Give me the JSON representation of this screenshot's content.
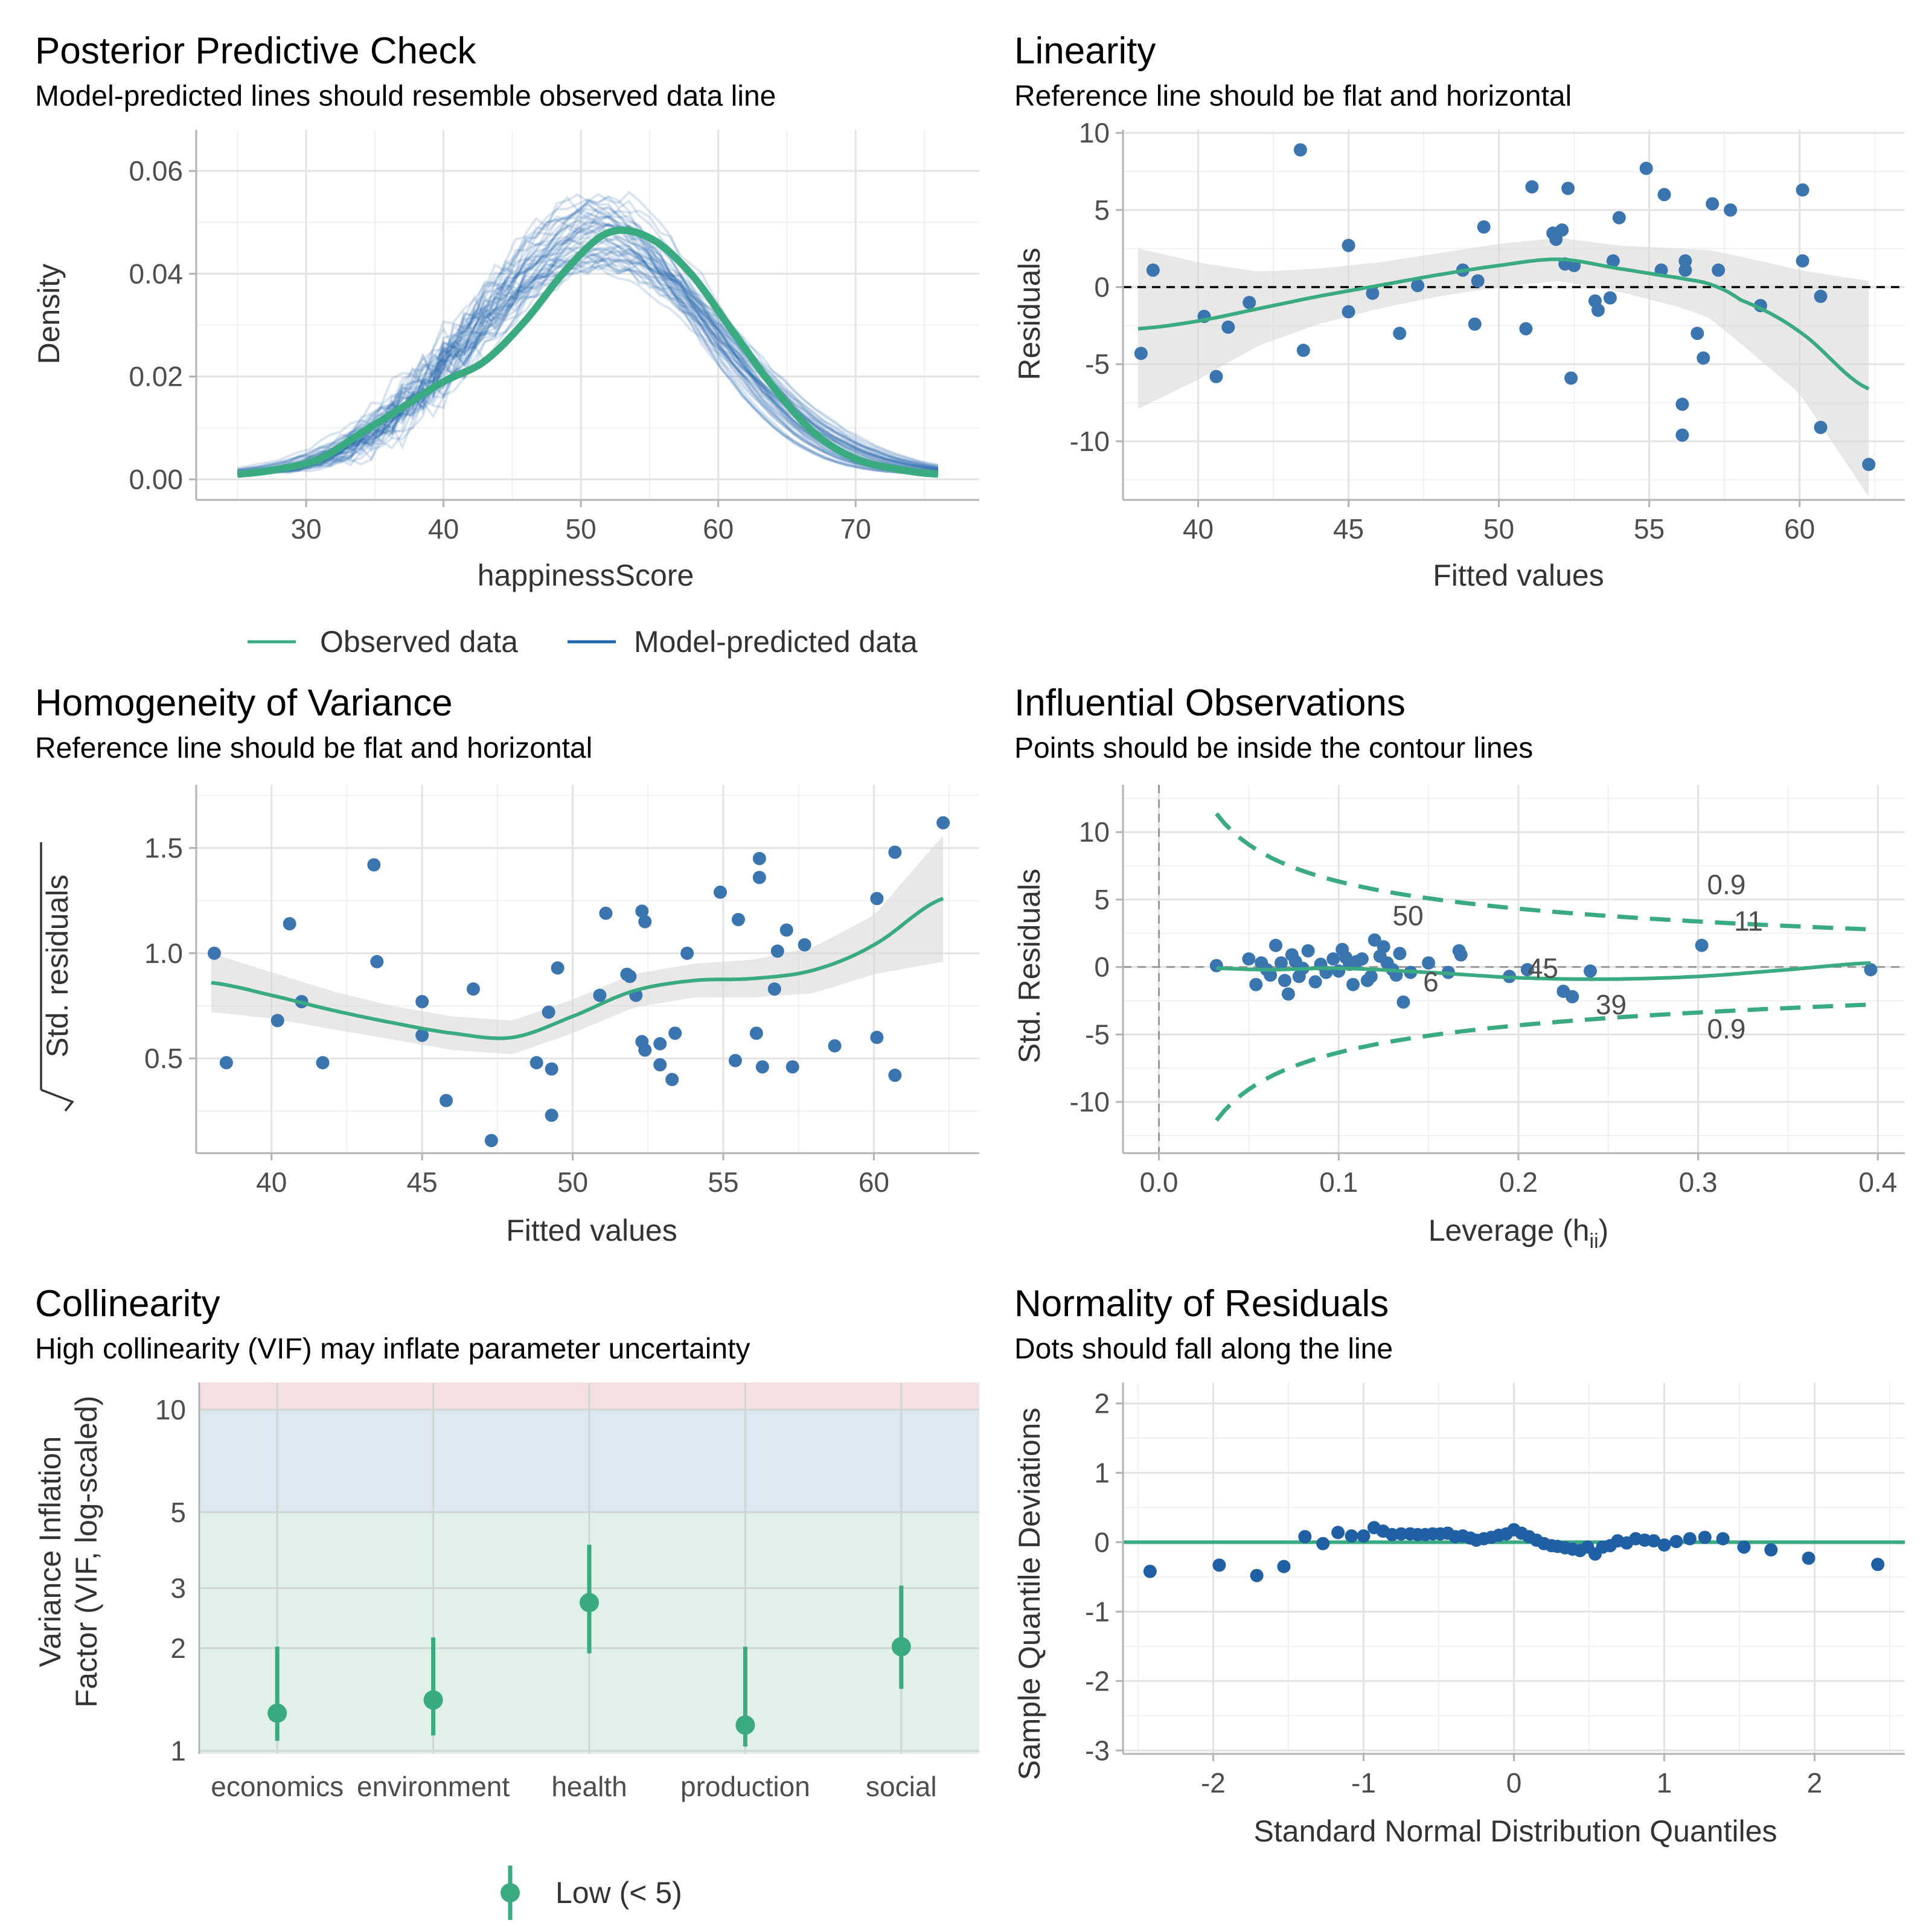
{
  "colors": {
    "observed": "#3aaa80",
    "predicted": "#2166ac",
    "points": "#3a75b0",
    "accent": "#3aaa80",
    "ribbon": "#d9d9d9",
    "zone_low": "#e1f1ea",
    "zone_mod": "#dce7f1",
    "zone_high": "#f6dfe2"
  },
  "chart_data": [
    {
      "id": "ppc",
      "type": "line",
      "title": "Posterior Predictive Check",
      "subtitle": "Model-predicted lines should resemble observed data line",
      "xlabel": "happinessScore",
      "ylabel": "Density",
      "xlim": [
        22,
        79
      ],
      "ylim": [
        -0.004,
        0.068
      ],
      "xticks": [
        30,
        40,
        50,
        60,
        70
      ],
      "yticks": [
        0.0,
        0.02,
        0.04,
        0.06
      ],
      "ytick_labels": [
        "0.00",
        "0.02",
        "0.04",
        "0.06"
      ],
      "legend": [
        "Observed data",
        "Model-predicted data"
      ],
      "series": [
        {
          "name": "Observed data",
          "x": [
            25,
            28,
            31,
            34,
            37,
            40,
            43,
            46,
            49,
            52,
            55,
            58,
            61,
            64,
            67,
            70,
            73,
            76
          ],
          "y": [
            0.001,
            0.002,
            0.004,
            0.009,
            0.014,
            0.019,
            0.023,
            0.031,
            0.041,
            0.048,
            0.047,
            0.04,
            0.029,
            0.018,
            0.009,
            0.004,
            0.002,
            0.001
          ]
        },
        {
          "name": "Model-predicted data",
          "note_draws": 50,
          "center_x": 51.5,
          "sd": 8.4,
          "peak": 0.048
        }
      ]
    },
    {
      "id": "linearity",
      "type": "scatter",
      "title": "Linearity",
      "subtitle": "Reference line should be flat and horizontal",
      "xlabel": "Fitted values",
      "ylabel": "Residuals",
      "xlim": [
        37.5,
        63.5
      ],
      "ylim": [
        -13.8,
        10.2
      ],
      "xticks": [
        40,
        45,
        50,
        55,
        60
      ],
      "yticks": [
        -10,
        -5,
        0,
        5,
        10
      ],
      "points": [
        [
          38.1,
          -4.3
        ],
        [
          38.5,
          1.1
        ],
        [
          40.2,
          -1.9
        ],
        [
          40.6,
          -5.8
        ],
        [
          41,
          -2.6
        ],
        [
          41.7,
          -1
        ],
        [
          43.4,
          8.9
        ],
        [
          43.5,
          -4.1
        ],
        [
          45,
          2.7
        ],
        [
          45,
          -1.6
        ],
        [
          45.8,
          -0.4
        ],
        [
          46.7,
          -3
        ],
        [
          47.3,
          0.1
        ],
        [
          48.8,
          1.1
        ],
        [
          49.2,
          -2.4
        ],
        [
          49.3,
          0.4
        ],
        [
          49.5,
          3.9
        ],
        [
          50.9,
          -2.7
        ],
        [
          51.1,
          6.5
        ],
        [
          51.8,
          3.5
        ],
        [
          51.9,
          3.1
        ],
        [
          52.1,
          3.7
        ],
        [
          52.2,
          1.5
        ],
        [
          52.3,
          6.4
        ],
        [
          52.4,
          -5.9
        ],
        [
          52.5,
          1.4
        ],
        [
          53.2,
          -0.9
        ],
        [
          53.3,
          -1.5
        ],
        [
          53.7,
          -0.7
        ],
        [
          53.8,
          1.7
        ],
        [
          54,
          4.5
        ],
        [
          54.9,
          7.7
        ],
        [
          55.4,
          1.1
        ],
        [
          55.5,
          6
        ],
        [
          56.1,
          -7.6
        ],
        [
          56.1,
          -9.6
        ],
        [
          56.2,
          1.7
        ],
        [
          56.2,
          1.1
        ],
        [
          56.6,
          -3
        ],
        [
          56.8,
          -4.6
        ],
        [
          57.1,
          5.4
        ],
        [
          57.3,
          1.1
        ],
        [
          57.7,
          5
        ],
        [
          58.7,
          -1.2
        ],
        [
          60.1,
          6.3
        ],
        [
          60.1,
          1.7
        ],
        [
          60.7,
          -9.1
        ],
        [
          60.7,
          -0.6
        ],
        [
          62.3,
          -11.5
        ]
      ],
      "smooth": {
        "x": [
          38,
          40,
          42,
          44,
          46,
          48,
          50,
          52,
          54,
          56,
          57,
          58,
          60,
          62.3
        ],
        "y": [
          -2.7,
          -2.2,
          -1.4,
          -0.6,
          0.1,
          0.8,
          1.4,
          1.8,
          1.2,
          0.6,
          0.2,
          -0.8,
          -2.9,
          -6.6
        ],
        "band": [
          5.2,
          3.8,
          2.4,
          1.8,
          1.5,
          1.4,
          1.4,
          1.4,
          1.5,
          1.9,
          2.2,
          2.8,
          4.0,
          7.0
        ]
      }
    },
    {
      "id": "homogeneity",
      "type": "scatter",
      "title": "Homogeneity of Variance",
      "subtitle": "Reference line should be flat and horizontal",
      "xlabel": "Fitted values",
      "ylabel": "Std. residuals",
      "xlim": [
        37.5,
        63.5
      ],
      "ylim": [
        0.05,
        1.8
      ],
      "xticks": [
        40,
        45,
        50,
        55,
        60
      ],
      "yticks": [
        0.5,
        1.0,
        1.5
      ],
      "ytick_labels": [
        "0.5",
        "1.0",
        "1.5"
      ],
      "points": [
        [
          38.1,
          1.0
        ],
        [
          38.5,
          0.48
        ],
        [
          40.2,
          0.68
        ],
        [
          40.6,
          1.14
        ],
        [
          41,
          0.77
        ],
        [
          41.7,
          0.48
        ],
        [
          43.4,
          1.42
        ],
        [
          43.5,
          0.96
        ],
        [
          45,
          0.77
        ],
        [
          45,
          0.61
        ],
        [
          45.8,
          0.3
        ],
        [
          46.7,
          0.83
        ],
        [
          47.3,
          0.11
        ],
        [
          48.8,
          0.48
        ],
        [
          49.2,
          0.72
        ],
        [
          49.3,
          0.45
        ],
        [
          49.3,
          0.23
        ],
        [
          49.5,
          0.93
        ],
        [
          50.9,
          0.8
        ],
        [
          51.1,
          1.19
        ],
        [
          51.8,
          0.9
        ],
        [
          51.9,
          0.89
        ],
        [
          52.1,
          0.8
        ],
        [
          52.3,
          0.58
        ],
        [
          52.3,
          1.2
        ],
        [
          52.4,
          1.15
        ],
        [
          52.4,
          0.54
        ],
        [
          52.9,
          0.57
        ],
        [
          52.9,
          0.47
        ],
        [
          53.3,
          0.4
        ],
        [
          53.4,
          0.62
        ],
        [
          53.8,
          1.0
        ],
        [
          54.9,
          1.29
        ],
        [
          55.4,
          0.49
        ],
        [
          55.5,
          1.16
        ],
        [
          56.1,
          0.62
        ],
        [
          56.2,
          1.45
        ],
        [
          56.2,
          1.36
        ],
        [
          56.3,
          0.46
        ],
        [
          56.7,
          0.83
        ],
        [
          56.8,
          1.01
        ],
        [
          57.1,
          1.11
        ],
        [
          57.3,
          0.46
        ],
        [
          57.7,
          1.04
        ],
        [
          58.7,
          0.56
        ],
        [
          60.1,
          1.26
        ],
        [
          60.1,
          0.6
        ],
        [
          60.7,
          1.48
        ],
        [
          60.7,
          0.42
        ],
        [
          62.3,
          1.62
        ]
      ],
      "smooth": {
        "x": [
          38,
          40,
          42,
          44,
          46,
          48,
          50,
          52,
          54,
          56,
          58,
          60,
          62.3
        ],
        "y": [
          0.86,
          0.8,
          0.73,
          0.67,
          0.62,
          0.6,
          0.7,
          0.82,
          0.87,
          0.88,
          0.92,
          1.04,
          1.26
        ],
        "band": [
          0.14,
          0.11,
          0.09,
          0.08,
          0.08,
          0.08,
          0.08,
          0.08,
          0.08,
          0.09,
          0.11,
          0.14,
          0.3
        ]
      }
    },
    {
      "id": "influential",
      "type": "scatter",
      "title": "Influential Observations",
      "subtitle": "Points should be inside the contour lines",
      "xlabel": "Leverage (h",
      "xlabel_sub": "ii",
      "xlabel_end": ")",
      "ylabel": "Std. Residuals",
      "xlim": [
        -0.02,
        0.415
      ],
      "ylim": [
        -13.8,
        13.5
      ],
      "xticks": [
        0.0,
        0.1,
        0.2,
        0.3,
        0.4
      ],
      "yticks": [
        -10,
        -5,
        0,
        5,
        10
      ],
      "xtick_labels": [
        "0.0",
        "0.1",
        "0.2",
        "0.3",
        "0.4"
      ],
      "contour_label": "0.9",
      "points": [
        [
          0.032,
          0.1
        ],
        [
          0.05,
          0.6
        ],
        [
          0.054,
          -1.3
        ],
        [
          0.057,
          0.3
        ],
        [
          0.06,
          -0.2
        ],
        [
          0.062,
          -0.6
        ],
        [
          0.065,
          1.6
        ],
        [
          0.068,
          0.3
        ],
        [
          0.07,
          -1.0
        ],
        [
          0.072,
          -2.0
        ],
        [
          0.074,
          0.9
        ],
        [
          0.076,
          0.4
        ],
        [
          0.078,
          -0.7
        ],
        [
          0.08,
          -0.1
        ],
        [
          0.083,
          1.2
        ],
        [
          0.087,
          -1.1
        ],
        [
          0.09,
          0.2
        ],
        [
          0.093,
          -0.4
        ],
        [
          0.097,
          0.6
        ],
        [
          0.1,
          -0.3
        ],
        [
          0.102,
          1.3
        ],
        [
          0.104,
          0.7
        ],
        [
          0.106,
          0.2
        ],
        [
          0.108,
          -1.3
        ],
        [
          0.11,
          0.4
        ],
        [
          0.113,
          0.6
        ],
        [
          0.116,
          -1.0
        ],
        [
          0.118,
          -0.7
        ],
        [
          0.12,
          2.0
        ],
        [
          0.123,
          0.8
        ],
        [
          0.125,
          1.5
        ],
        [
          0.127,
          0.3
        ],
        [
          0.13,
          -0.2
        ],
        [
          0.132,
          -0.6
        ],
        [
          0.134,
          1.0
        ],
        [
          0.136,
          -2.6
        ],
        [
          0.14,
          -0.4
        ],
        [
          0.15,
          0.3
        ],
        [
          0.161,
          -0.4
        ],
        [
          0.167,
          1.2
        ],
        [
          0.168,
          0.9
        ],
        [
          0.195,
          -0.7
        ],
        [
          0.205,
          -0.2
        ],
        [
          0.225,
          -1.8
        ],
        [
          0.23,
          -2.2
        ],
        [
          0.24,
          -0.3
        ],
        [
          0.302,
          1.6
        ],
        [
          0.396,
          -0.2
        ]
      ],
      "labels": [
        {
          "x": 0.13,
          "y": 3.1,
          "t": "50"
        },
        {
          "x": 0.147,
          "y": -1.8,
          "t": "6"
        },
        {
          "x": 0.205,
          "y": -0.8,
          "t": "45"
        },
        {
          "x": 0.243,
          "y": -3.5,
          "t": "39"
        },
        {
          "x": 0.32,
          "y": 2.7,
          "t": "11"
        }
      ],
      "smooth": {
        "x": [
          0.032,
          0.06,
          0.1,
          0.15,
          0.2,
          0.25,
          0.3,
          0.35,
          0.396
        ],
        "y": [
          -0.1,
          -0.2,
          -0.1,
          -0.4,
          -0.8,
          -0.9,
          -0.7,
          -0.2,
          0.3
        ]
      }
    },
    {
      "id": "collinearity",
      "type": "scatter",
      "title": "Collinearity",
      "subtitle": "High collinearity (VIF) may inflate parameter uncertainty",
      "ylabel_line1": "Variance Inflation",
      "ylabel_line2": "Factor (VIF, log-scaled)",
      "scale": "log",
      "categories": [
        "economics",
        "environment",
        "health",
        "production",
        "social"
      ],
      "values": [
        1.29,
        1.41,
        2.72,
        1.19,
        2.02
      ],
      "ci_low": [
        1.07,
        1.11,
        1.93,
        1.03,
        1.52
      ],
      "ci_high": [
        2.02,
        2.15,
        4.02,
        2.02,
        3.05
      ],
      "ylim": [
        0.98,
        12.0
      ],
      "yticks": [
        1,
        2,
        3,
        5,
        10
      ],
      "zones": [
        1,
        5,
        10
      ],
      "legend": [
        "Low (< 5)"
      ]
    },
    {
      "id": "normality",
      "type": "scatter",
      "title": "Normality of Residuals",
      "subtitle": "Dots should fall along the line",
      "xlabel": "Standard Normal Distribution Quantiles",
      "ylabel": "Sample Quantile Deviations",
      "xlim": [
        -2.6,
        2.6
      ],
      "ylim": [
        -3.05,
        2.3
      ],
      "xticks": [
        -2,
        -1,
        0,
        1,
        2
      ],
      "yticks": [
        -3,
        -2,
        -1,
        0,
        1,
        2
      ],
      "points": [
        [
          -2.42,
          -0.42
        ],
        [
          -1.96,
          -0.33
        ],
        [
          -1.71,
          -0.48
        ],
        [
          -1.53,
          -0.35
        ],
        [
          -1.39,
          0.08
        ],
        [
          -1.27,
          -0.02
        ],
        [
          -1.17,
          0.14
        ],
        [
          -1.08,
          0.09
        ],
        [
          -1,
          0.09
        ],
        [
          -0.93,
          0.21
        ],
        [
          -0.87,
          0.16
        ],
        [
          -0.81,
          0.11
        ],
        [
          -0.75,
          0.12
        ],
        [
          -0.69,
          0.12
        ],
        [
          -0.64,
          0.11
        ],
        [
          -0.59,
          0.11
        ],
        [
          -0.54,
          0.12
        ],
        [
          -0.49,
          0.12
        ],
        [
          -0.44,
          0.13
        ],
        [
          -0.39,
          0.08
        ],
        [
          -0.34,
          0.09
        ],
        [
          -0.29,
          0.06
        ],
        [
          -0.25,
          0.03
        ],
        [
          -0.2,
          0.05
        ],
        [
          -0.15,
          0.07
        ],
        [
          -0.1,
          0.1
        ],
        [
          -0.05,
          0.12
        ],
        [
          0,
          0.18
        ],
        [
          0.05,
          0.13
        ],
        [
          0.1,
          0.08
        ],
        [
          0.15,
          0.03
        ],
        [
          0.2,
          -0.02
        ],
        [
          0.25,
          -0.05
        ],
        [
          0.29,
          -0.06
        ],
        [
          0.34,
          -0.08
        ],
        [
          0.39,
          -0.1
        ],
        [
          0.44,
          -0.12
        ],
        [
          0.49,
          -0.07
        ],
        [
          0.54,
          -0.17
        ],
        [
          0.59,
          -0.07
        ],
        [
          0.64,
          -0.05
        ],
        [
          0.69,
          0.02
        ],
        [
          0.75,
          -0.01
        ],
        [
          0.81,
          0.05
        ],
        [
          0.87,
          0.03
        ],
        [
          0.93,
          0.02
        ],
        [
          1,
          -0.04
        ],
        [
          1.08,
          0.01
        ],
        [
          1.17,
          0.05
        ],
        [
          1.27,
          0.07
        ],
        [
          1.39,
          0.05
        ],
        [
          1.53,
          -0.07
        ],
        [
          1.71,
          -0.11
        ],
        [
          1.96,
          -0.23
        ],
        [
          2.42,
          -0.32
        ]
      ]
    }
  ]
}
